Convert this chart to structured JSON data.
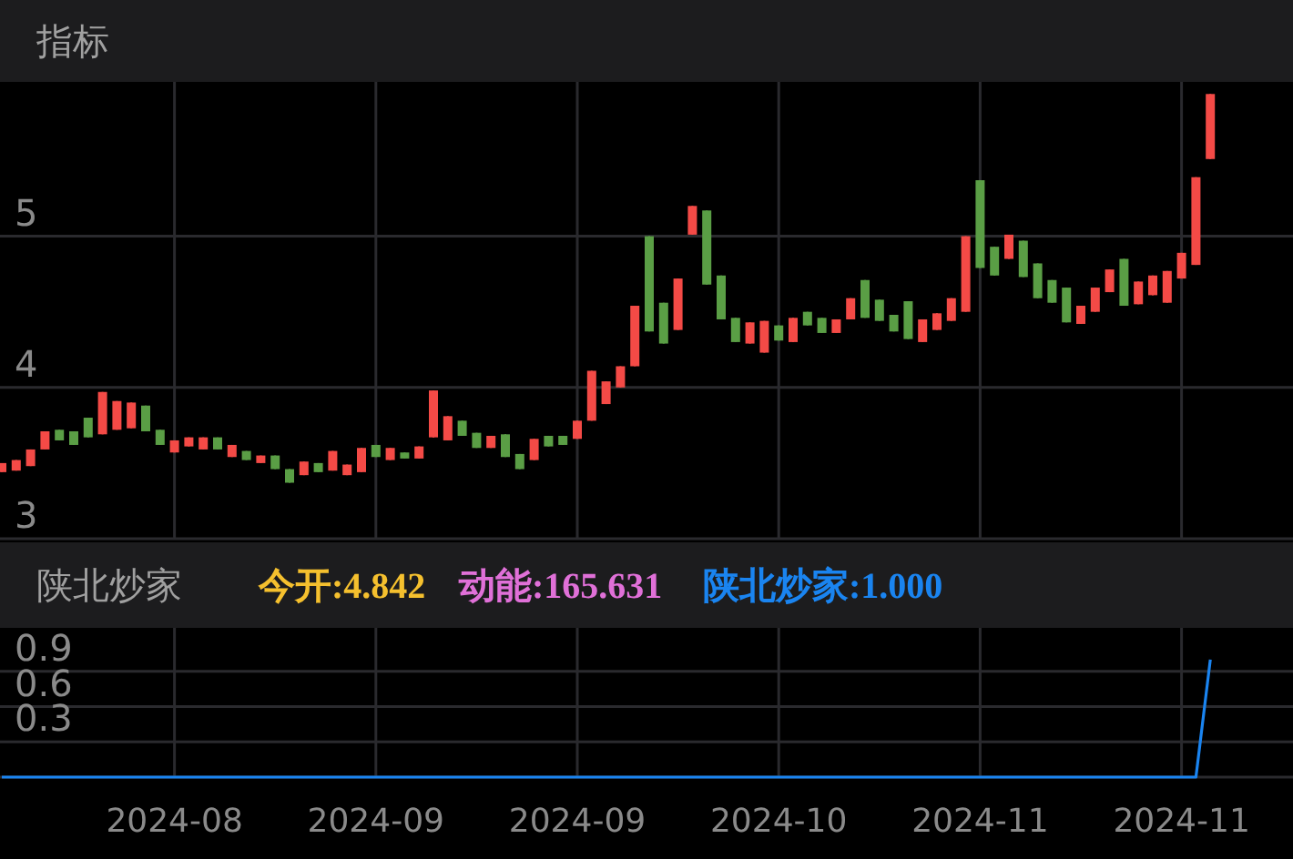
{
  "chart_data": [
    {
      "type": "candlestick",
      "title": "指标",
      "categories": [
        null,
        null,
        null,
        null,
        null,
        null,
        null,
        null,
        null,
        null,
        null,
        null,
        "2024-08",
        null,
        null,
        null,
        null,
        null,
        null,
        null,
        null,
        null,
        null,
        null,
        null,
        null,
        "2024-09",
        null,
        null,
        null,
        null,
        null,
        null,
        null,
        null,
        null,
        null,
        null,
        null,
        null,
        "2024-09",
        null,
        null,
        null,
        null,
        null,
        null,
        null,
        null,
        null,
        null,
        null,
        null,
        null,
        "2024-10",
        null,
        null,
        null,
        null,
        null,
        null,
        null,
        null,
        null,
        null,
        null,
        null,
        null,
        "2024-11",
        null,
        null,
        null,
        null,
        null,
        null,
        null,
        null,
        null,
        null,
        null,
        null,
        null,
        "2024-11",
        null,
        null
      ],
      "ohlc": [
        [
          3.44,
          3.5,
          3.44,
          3.5
        ],
        [
          3.45,
          3.52,
          3.45,
          3.52
        ],
        [
          3.48,
          3.59,
          3.48,
          3.59
        ],
        [
          3.59,
          3.71,
          3.59,
          3.71
        ],
        [
          3.72,
          3.72,
          3.65,
          3.65
        ],
        [
          3.71,
          3.71,
          3.62,
          3.62
        ],
        [
          3.8,
          3.8,
          3.67,
          3.67
        ],
        [
          3.69,
          3.97,
          3.69,
          3.97
        ],
        [
          3.72,
          3.91,
          3.72,
          3.91
        ],
        [
          3.73,
          3.9,
          3.73,
          3.9
        ],
        [
          3.88,
          3.88,
          3.71,
          3.71
        ],
        [
          3.72,
          3.72,
          3.62,
          3.62
        ],
        [
          3.57,
          3.65,
          3.57,
          3.65
        ],
        [
          3.61,
          3.67,
          3.61,
          3.67
        ],
        [
          3.59,
          3.67,
          3.59,
          3.67
        ],
        [
          3.67,
          3.67,
          3.59,
          3.59
        ],
        [
          3.54,
          3.62,
          3.54,
          3.62
        ],
        [
          3.58,
          3.58,
          3.52,
          3.52
        ],
        [
          3.5,
          3.55,
          3.5,
          3.55
        ],
        [
          3.55,
          3.55,
          3.46,
          3.46
        ],
        [
          3.46,
          3.46,
          3.37,
          3.37
        ],
        [
          3.42,
          3.51,
          3.42,
          3.51
        ],
        [
          3.5,
          3.5,
          3.44,
          3.44
        ],
        [
          3.45,
          3.58,
          3.45,
          3.58
        ],
        [
          3.42,
          3.49,
          3.42,
          3.49
        ],
        [
          3.44,
          3.6,
          3.44,
          3.6
        ],
        [
          3.62,
          3.62,
          3.54,
          3.54
        ],
        [
          3.52,
          3.6,
          3.52,
          3.6
        ],
        [
          3.57,
          3.57,
          3.53,
          3.53
        ],
        [
          3.53,
          3.61,
          3.53,
          3.61
        ],
        [
          3.67,
          3.98,
          3.67,
          3.98
        ],
        [
          3.65,
          3.81,
          3.65,
          3.81
        ],
        [
          3.78,
          3.78,
          3.68,
          3.68
        ],
        [
          3.7,
          3.7,
          3.6,
          3.6
        ],
        [
          3.6,
          3.68,
          3.6,
          3.68
        ],
        [
          3.69,
          3.69,
          3.54,
          3.54
        ],
        [
          3.56,
          3.56,
          3.46,
          3.46
        ],
        [
          3.52,
          3.66,
          3.52,
          3.66
        ],
        [
          3.68,
          3.68,
          3.61,
          3.61
        ],
        [
          3.68,
          3.68,
          3.62,
          3.62
        ],
        [
          3.66,
          3.78,
          3.66,
          3.78
        ],
        [
          3.78,
          4.11,
          3.78,
          4.11
        ],
        [
          3.89,
          4.04,
          3.89,
          4.04
        ],
        [
          4.0,
          4.14,
          4.0,
          4.14
        ],
        [
          4.14,
          4.54,
          4.14,
          4.54
        ],
        [
          5.0,
          5.0,
          4.37,
          4.37
        ],
        [
          4.56,
          4.56,
          4.29,
          4.29
        ],
        [
          4.38,
          4.72,
          4.38,
          4.72
        ],
        [
          5.01,
          5.2,
          5.01,
          5.2
        ],
        [
          5.17,
          5.17,
          4.68,
          4.68
        ],
        [
          4.74,
          4.74,
          4.45,
          4.45
        ],
        [
          4.46,
          4.46,
          4.3,
          4.3
        ],
        [
          4.29,
          4.43,
          4.29,
          4.43
        ],
        [
          4.23,
          4.44,
          4.23,
          4.44
        ],
        [
          4.41,
          4.41,
          4.31,
          4.31
        ],
        [
          4.3,
          4.46,
          4.3,
          4.46
        ],
        [
          4.5,
          4.5,
          4.41,
          4.41
        ],
        [
          4.46,
          4.46,
          4.36,
          4.36
        ],
        [
          4.36,
          4.45,
          4.36,
          4.45
        ],
        [
          4.45,
          4.59,
          4.45,
          4.59
        ],
        [
          4.71,
          4.71,
          4.46,
          4.46
        ],
        [
          4.58,
          4.58,
          4.44,
          4.44
        ],
        [
          4.48,
          4.48,
          4.37,
          4.37
        ],
        [
          4.57,
          4.57,
          4.32,
          4.32
        ],
        [
          4.3,
          4.45,
          4.3,
          4.45
        ],
        [
          4.38,
          4.49,
          4.38,
          4.49
        ],
        [
          4.44,
          4.59,
          4.44,
          4.59
        ],
        [
          4.5,
          5.0,
          4.5,
          5.0
        ],
        [
          5.37,
          5.37,
          4.79,
          4.79
        ],
        [
          4.93,
          4.93,
          4.74,
          4.74
        ],
        [
          4.85,
          5.01,
          4.85,
          5.01
        ],
        [
          4.97,
          4.97,
          4.73,
          4.73
        ],
        [
          4.82,
          4.82,
          4.59,
          4.59
        ],
        [
          4.71,
          4.71,
          4.56,
          4.56
        ],
        [
          4.66,
          4.66,
          4.43,
          4.43
        ],
        [
          4.42,
          4.54,
          4.42,
          4.54
        ],
        [
          4.5,
          4.66,
          4.5,
          4.66
        ],
        [
          4.63,
          4.78,
          4.63,
          4.78
        ],
        [
          4.85,
          4.85,
          4.54,
          4.54
        ],
        [
          4.55,
          4.7,
          4.55,
          4.7
        ],
        [
          4.61,
          4.74,
          4.61,
          4.74
        ],
        [
          4.56,
          4.77,
          4.56,
          4.77
        ],
        [
          4.72,
          4.89,
          4.72,
          4.89
        ],
        [
          4.81,
          5.39,
          4.81,
          5.39
        ],
        [
          5.51,
          5.94,
          5.51,
          5.94
        ]
      ],
      "ylim": [
        3,
        6.02
      ],
      "yticks": [
        3,
        4,
        5
      ],
      "grid": true,
      "tick_labels": "y"
    },
    {
      "type": "line",
      "title": "陕北炒家",
      "annotations": [
        "今开:4.842",
        "动能:165.631",
        "陕北炒家:1.000"
      ],
      "categories": [
        null,
        null,
        null,
        null,
        null,
        null,
        null,
        null,
        null,
        null,
        null,
        null,
        "2024-08",
        null,
        null,
        null,
        null,
        null,
        null,
        null,
        null,
        null,
        null,
        null,
        null,
        null,
        "2024-09",
        null,
        null,
        null,
        null,
        null,
        null,
        null,
        null,
        null,
        null,
        null,
        null,
        null,
        "2024-09",
        null,
        null,
        null,
        null,
        null,
        null,
        null,
        null,
        null,
        null,
        null,
        null,
        null,
        "2024-10",
        null,
        null,
        null,
        null,
        null,
        null,
        null,
        null,
        null,
        null,
        null,
        null,
        null,
        "2024-11",
        null,
        null,
        null,
        null,
        null,
        null,
        null,
        null,
        null,
        null,
        null,
        null,
        null,
        "2024-11",
        null,
        null
      ],
      "series": [
        {
          "color": "#1a84f0",
          "values": [
            0,
            0,
            0,
            0,
            0,
            0,
            0,
            0,
            0,
            0,
            0,
            0,
            0,
            0,
            0,
            0,
            0,
            0,
            0,
            0,
            0,
            0,
            0,
            0,
            0,
            0,
            0,
            0,
            0,
            0,
            0,
            0,
            0,
            0,
            0,
            0,
            0,
            0,
            0,
            0,
            0,
            0,
            0,
            0,
            0,
            0,
            0,
            0,
            0,
            0,
            0,
            0,
            0,
            0,
            0,
            0,
            0,
            0,
            0,
            0,
            0,
            0,
            0,
            0,
            0,
            0,
            0,
            0,
            0,
            0,
            0,
            0,
            0,
            0,
            0,
            0,
            0,
            0,
            0,
            0,
            0,
            0,
            0,
            0,
            1.0
          ]
        }
      ],
      "ylim": [
        0,
        1.27
      ],
      "yticks": [
        {
          "value": 0,
          "label": null
        },
        0.3,
        0.6,
        0.9
      ],
      "grid": true
    }
  ]
}
